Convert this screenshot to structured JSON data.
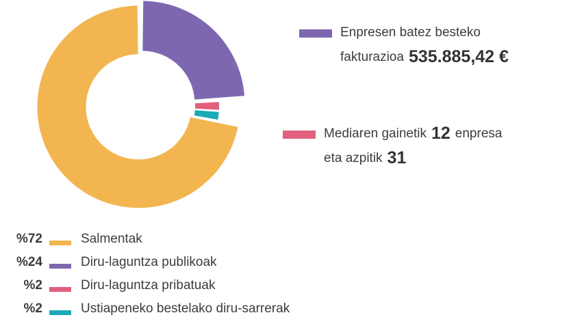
{
  "chart_data": {
    "type": "donut",
    "categories": [
      "Salmentak",
      "Diru-laguntza publikoak",
      "Diru-laguntza pribatuak",
      "Ustiapeneko bestelako diru-sarrerak"
    ],
    "values": [
      72,
      24,
      2,
      2
    ],
    "value_labels": [
      "%72",
      "%24",
      "%2",
      "%2"
    ],
    "colors": [
      "#f2b54f",
      "#7d68b0",
      "#e0607e",
      "#1aa9b5"
    ],
    "annotations": [
      {
        "color": "#7d68b0",
        "lines": [
          [
            {
              "text": "Enpresen batez besteko"
            }
          ],
          [
            {
              "text": "fakturazioa"
            },
            {
              "text": "535.885,42 €",
              "bold": true
            }
          ]
        ]
      },
      {
        "color": "#e0607e",
        "lines": [
          [
            {
              "text": "Mediaren gainetik"
            },
            {
              "text": "12",
              "bold": true
            },
            {
              "text": "enpresa"
            }
          ],
          [
            {
              "text": "eta azpitik"
            },
            {
              "text": "31",
              "bold": true
            }
          ]
        ]
      }
    ]
  }
}
